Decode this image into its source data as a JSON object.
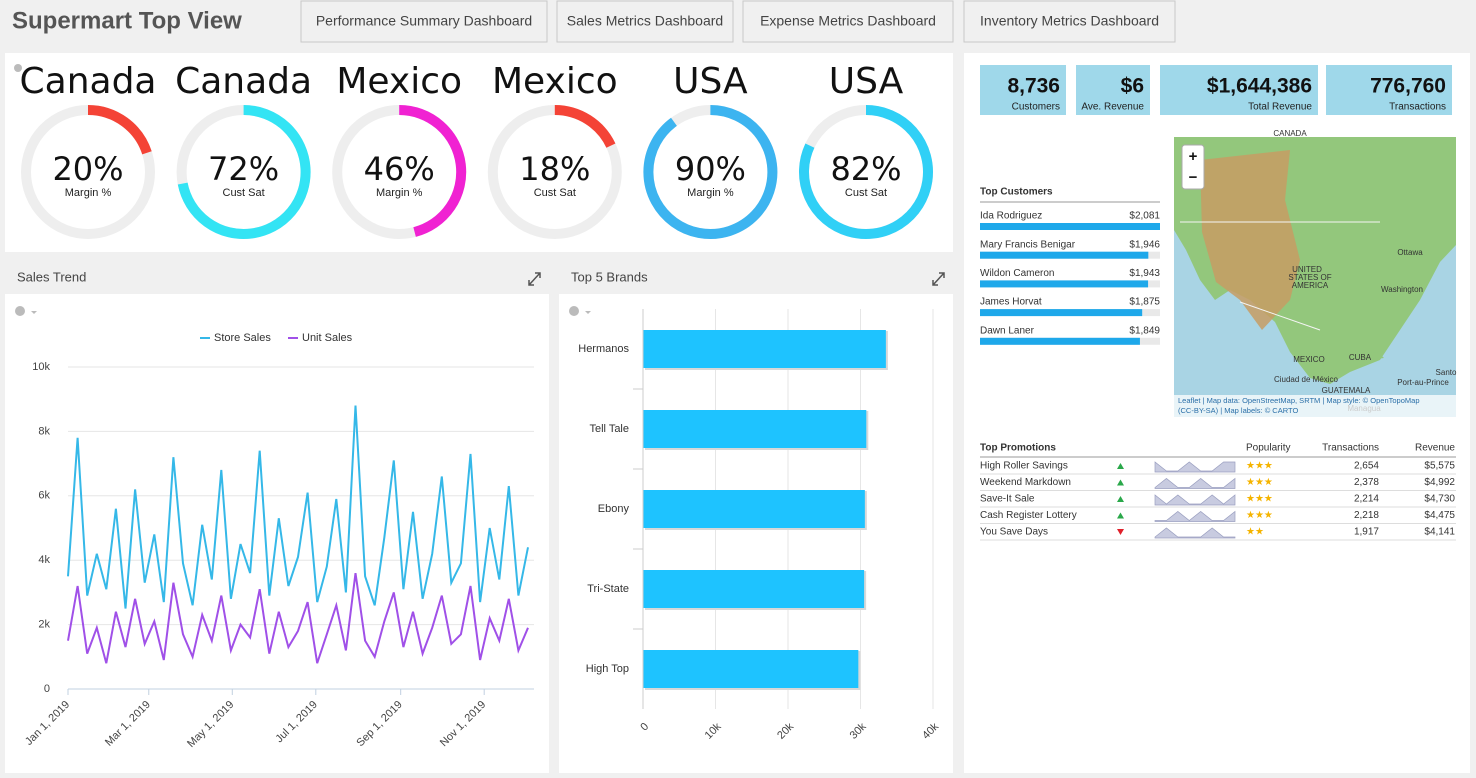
{
  "header": {
    "title": "Supermart Top View",
    "tabs": [
      "Performance Summary Dashboard",
      "Sales Metrics Dashboard",
      "Expense Metrics Dashboard",
      "Inventory Metrics Dashboard"
    ]
  },
  "chart_data": [
    {
      "type": "gauge",
      "title": "Canada",
      "values": [
        20
      ],
      "value_labels": [
        "20%"
      ],
      "subtitle": "Margin %",
      "color": "#f44336",
      "ylim": [
        0,
        100
      ]
    },
    {
      "type": "gauge",
      "title": "Canada",
      "values": [
        72
      ],
      "value_labels": [
        "72%"
      ],
      "subtitle": "Cust Sat",
      "color": "#33e4f4",
      "ylim": [
        0,
        100
      ]
    },
    {
      "type": "gauge",
      "title": "Mexico",
      "values": [
        46
      ],
      "value_labels": [
        "46%"
      ],
      "subtitle": "Margin %",
      "color": "#f022d2",
      "ylim": [
        0,
        100
      ]
    },
    {
      "type": "gauge",
      "title": "Mexico",
      "values": [
        18
      ],
      "value_labels": [
        "18%"
      ],
      "subtitle": "Cust Sat",
      "color": "#f44336",
      "ylim": [
        0,
        100
      ]
    },
    {
      "type": "gauge",
      "title": "USA",
      "values": [
        90
      ],
      "value_labels": [
        "90%"
      ],
      "subtitle": "Margin %",
      "color": "#3cb4f0",
      "ylim": [
        0,
        100
      ]
    },
    {
      "type": "gauge",
      "title": "USA",
      "values": [
        82
      ],
      "value_labels": [
        "82%"
      ],
      "subtitle": "Cust Sat",
      "color": "#30d0f6",
      "ylim": [
        0,
        100
      ]
    },
    {
      "type": "line",
      "title": "Sales Trend",
      "x": [
        "2019-01-01",
        "2019-01-08",
        "2019-01-15",
        "2019-01-22",
        "2019-01-29",
        "2019-02-05",
        "2019-02-12",
        "2019-02-19",
        "2019-02-26",
        "2019-03-05",
        "2019-03-12",
        "2019-03-19",
        "2019-03-26",
        "2019-04-02",
        "2019-04-09",
        "2019-04-16",
        "2019-04-23",
        "2019-04-30",
        "2019-05-07",
        "2019-05-14",
        "2019-05-21",
        "2019-05-28",
        "2019-06-04",
        "2019-06-11",
        "2019-06-18",
        "2019-06-25",
        "2019-07-02",
        "2019-07-09",
        "2019-07-16",
        "2019-07-23",
        "2019-07-30",
        "2019-08-06",
        "2019-08-13",
        "2019-08-20",
        "2019-08-27",
        "2019-09-03",
        "2019-09-10",
        "2019-09-17",
        "2019-09-24",
        "2019-10-01",
        "2019-10-08",
        "2019-10-15",
        "2019-10-22",
        "2019-10-29",
        "2019-11-05",
        "2019-11-12",
        "2019-11-19",
        "2019-11-26",
        "2019-12-03"
      ],
      "series": [
        {
          "name": "Store Sales",
          "color": "#35b8e8",
          "values": [
            3500,
            7800,
            2900,
            4200,
            3100,
            5600,
            2500,
            6200,
            3300,
            4800,
            2700,
            7200,
            3900,
            2600,
            5100,
            3400,
            6800,
            2800,
            4500,
            3600,
            7400,
            2900,
            5300,
            3200,
            4100,
            6100,
            2700,
            3800,
            5900,
            3000,
            8800,
            3500,
            2600,
            4700,
            7100,
            3100,
            5500,
            2800,
            4200,
            6600,
            3300,
            3900,
            7300,
            2700,
            5000,
            3400,
            6300,
            2900,
            4400
          ]
        },
        {
          "name": "Unit Sales",
          "color": "#a050e8",
          "values": [
            1500,
            3200,
            1100,
            1900,
            800,
            2400,
            1300,
            2800,
            1400,
            2100,
            900,
            3300,
            1700,
            1000,
            2300,
            1500,
            2900,
            1200,
            2000,
            1600,
            3100,
            1100,
            2400,
            1300,
            1800,
            2700,
            800,
            1700,
            2600,
            1200,
            3600,
            1500,
            1000,
            2100,
            3000,
            1300,
            2400,
            1100,
            1900,
            2900,
            1400,
            1700,
            3200,
            900,
            2200,
            1500,
            2800,
            1200,
            1900
          ]
        }
      ],
      "xlim": [
        "2019-01-01",
        "2019-12-03"
      ],
      "xticks": [
        {
          "value": "2019-01-01",
          "label": "Jan 1, 2019"
        },
        {
          "value": "2019-03-01",
          "label": "Mar 1, 2019"
        },
        {
          "value": "2019-05-01",
          "label": "May 1, 2019"
        },
        {
          "value": "2019-07-01",
          "label": "Jul 1, 2019"
        },
        {
          "value": "2019-09-01",
          "label": "Sep 1, 2019"
        },
        {
          "value": "2019-11-01",
          "label": "Nov 1, 2019"
        }
      ],
      "ylim": [
        0,
        10000
      ],
      "yticks": [
        0,
        {
          "value": 2000,
          "label": "2k"
        },
        {
          "value": 4000,
          "label": "4k"
        },
        {
          "value": 6000,
          "label": "6k"
        },
        {
          "value": 8000,
          "label": "8k"
        },
        {
          "value": 10000,
          "label": "10k"
        }
      ],
      "grid": true
    },
    {
      "type": "bar",
      "title": "Top 5 Brands",
      "orientation": "horizontal",
      "color": "#1ec3ff",
      "categories": [
        "Hermanos",
        "Tell Tale",
        "Ebony",
        "Tri-State",
        "High Top"
      ],
      "values": [
        33500,
        30800,
        30600,
        30500,
        29700
      ],
      "xlim": [
        0,
        40000
      ],
      "xticks": [
        0,
        {
          "value": 10000,
          "label": "10k"
        },
        {
          "value": 20000,
          "label": "20k"
        },
        {
          "value": 30000,
          "label": "30k"
        },
        {
          "value": 40000,
          "label": "40k"
        }
      ],
      "grid": true
    }
  ],
  "kpis": [
    {
      "value": "8,736",
      "label": "Customers"
    },
    {
      "value": "$6",
      "label": "Ave. Revenue"
    },
    {
      "value": "$1,644,386",
      "label": "Total Revenue"
    },
    {
      "value": "776,760",
      "label": "Transactions"
    }
  ],
  "top_customers": {
    "title": "Top Customers",
    "rows": [
      {
        "name": "Ida Rodriguez",
        "value": 2081,
        "label": "$2,081"
      },
      {
        "name": "Mary Francis Benigar",
        "value": 1946,
        "label": "$1,946"
      },
      {
        "name": "Wildon Cameron",
        "value": 1943,
        "label": "$1,943"
      },
      {
        "name": "James Horvat",
        "value": 1875,
        "label": "$1,875"
      },
      {
        "name": "Dawn Laner",
        "value": 1849,
        "label": "$1,849"
      }
    ]
  },
  "map": {
    "zoom": [
      "+",
      "−"
    ],
    "labels": [
      "CANADA",
      "UNITED",
      "STATES OF",
      "AMERICA",
      "Ottawa",
      "Washington",
      "MEXICO",
      "CUBA",
      "Ciudad de México",
      "GUATEMALA",
      "Santo",
      "Port-au-Prince",
      "Managua"
    ],
    "attribution": [
      "Leaflet | Map data: OpenStreetMap, SRTM | Map style: © OpenTopoMap",
      "(CC-BY-SA) | Map labels: © CARTO"
    ]
  },
  "top_promotions": {
    "columns": [
      "Top Promotions",
      "Popularity",
      "Transactions",
      "Revenue"
    ],
    "rows": [
      {
        "name": "High Roller Savings",
        "trend": "up",
        "sparkline": [
          3,
          2,
          2,
          3,
          2,
          2,
          3,
          3
        ],
        "popularity": "★★★",
        "transactions": "2,654",
        "revenue": "$5,575"
      },
      {
        "name": "Weekend Markdown",
        "trend": "up",
        "sparkline": [
          2,
          3,
          2,
          2,
          3,
          2,
          2,
          3
        ],
        "popularity": "★★★",
        "transactions": "2,378",
        "revenue": "$4,992"
      },
      {
        "name": "Save-It Sale",
        "trend": "up",
        "sparkline": [
          3,
          2,
          3,
          2,
          2,
          3,
          2,
          3
        ],
        "popularity": "★★★",
        "transactions": "2,214",
        "revenue": "$4,730"
      },
      {
        "name": "Cash Register Lottery",
        "trend": "up",
        "sparkline": [
          2,
          2,
          3,
          2,
          3,
          2,
          2,
          3
        ],
        "popularity": "★★★",
        "transactions": "2,218",
        "revenue": "$4,475"
      },
      {
        "name": "You Save Days",
        "trend": "down",
        "sparkline": [
          2,
          3,
          2,
          2,
          2,
          3,
          2,
          2
        ],
        "popularity": "★★",
        "transactions": "1,917",
        "revenue": "$4,141"
      }
    ]
  }
}
